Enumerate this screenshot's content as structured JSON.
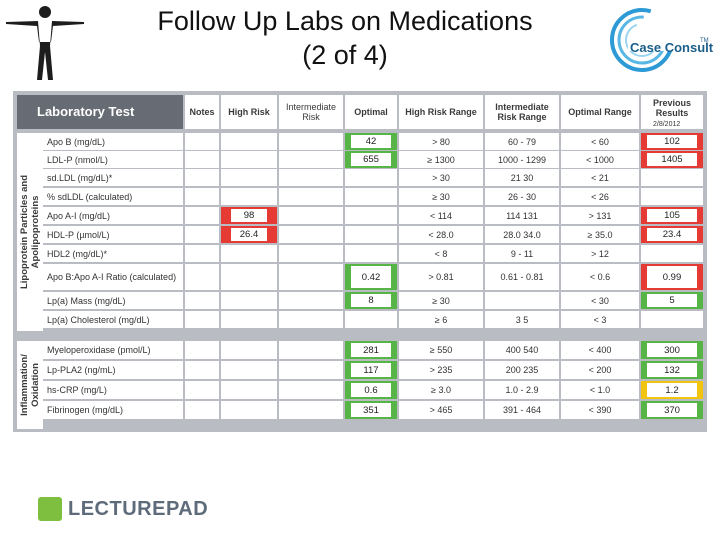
{
  "title": {
    "line1": "Follow Up Labs on Medications",
    "line2": "(2 of 4)"
  },
  "brand": {
    "case_consult": "Case Consult",
    "tm": "TM",
    "lecturepad": "LECTUREPAD"
  },
  "table": {
    "headers": {
      "test": "Laboratory Test",
      "notes": "Notes",
      "high_risk": "High Risk",
      "intermediate": "Intermediate Risk",
      "optimal": "Optimal",
      "high_range": "High Risk Range",
      "intermediate_range": "Intermediate Risk Range",
      "optimal_range": "Optimal Range",
      "previous": "Previous Results",
      "previous_date": "2/8/2012"
    },
    "groups": {
      "lipo": "Lipoprotein Particles and Apolipoproteins",
      "inflam": "Inflammation/ Oxidation"
    },
    "rows": [
      {
        "name": "Apo B (mg/dL)",
        "high": "",
        "opt": "42",
        "hr": "> 80",
        "ir": "60 - 79",
        "or": "< 60",
        "prev": "102"
      },
      {
        "name": "LDL-P (nmol/L)",
        "high": "",
        "opt": "655",
        "hr": "≥ 1300",
        "ir": "1000 - 1299",
        "or": "< 1000",
        "prev": "1405"
      },
      {
        "name": "sd.LDL (mg/dL)*",
        "high": "",
        "opt": "",
        "hr": "> 30",
        "ir": "21 30",
        "or": "< 21",
        "prev": ""
      },
      {
        "name": "% sdLDL (calculated)",
        "high": "",
        "opt": "",
        "hr": "≥ 30",
        "ir": "26 - 30",
        "or": "< 26",
        "prev": ""
      },
      {
        "name": "Apo A-I (mg/dL)",
        "high": "98",
        "opt": "",
        "hr": "< 114",
        "ir": "114 131",
        "or": "> 131",
        "prev": "105"
      },
      {
        "name": "HDL-P (µmol/L)",
        "high": "26.4",
        "opt": "",
        "hr": "< 28.0",
        "ir": "28.0 34.0",
        "or": "≥ 35.0",
        "prev": "23.4"
      },
      {
        "name": "HDL2 (mg/dL)*",
        "high": "",
        "opt": "",
        "hr": "< 8",
        "ir": "9 - 11",
        "or": "> 12",
        "prev": ""
      },
      {
        "name": "Apo B:Apo A-I Ratio (calculated)",
        "high": "",
        "opt": "0.42",
        "hr": "> 0.81",
        "ir": "0.61 - 0.81",
        "or": "< 0.6",
        "prev": "0.99"
      },
      {
        "name": "Lp(a) Mass (mg/dL)",
        "high": "",
        "opt": "8",
        "hr": "≥ 30",
        "ir": "",
        "or": "< 30",
        "prev": "5"
      },
      {
        "name": "Lp(a) Cholesterol (mg/dL)",
        "high": "",
        "opt": "",
        "hr": "≥ 6",
        "ir": "3 5",
        "or": "< 3",
        "prev": ""
      },
      {
        "name": "Myeloperoxidase (pmol/L)",
        "high": "",
        "opt": "281",
        "hr": "≥ 550",
        "ir": "400 540",
        "or": "< 400",
        "prev": "300"
      },
      {
        "name": "Lp-PLA2 (ng/mL)",
        "high": "",
        "opt": "117",
        "hr": "> 235",
        "ir": "200 235",
        "or": "< 200",
        "prev": "132"
      },
      {
        "name": "hs-CRP (mg/L)",
        "high": "",
        "opt": "0.6",
        "hr": "≥ 3.0",
        "ir": "1.0 - 2.9",
        "or": "< 1.0",
        "prev": "1.2"
      },
      {
        "name": "Fibrinogen (mg/dL)",
        "high": "",
        "opt": "351",
        "hr": "> 465",
        "ir": "391 - 464",
        "or": "< 390",
        "prev": "370"
      }
    ],
    "colors": {
      "red": "#e63b34",
      "green": "#57b547",
      "yellow": "#f1c40f"
    }
  }
}
